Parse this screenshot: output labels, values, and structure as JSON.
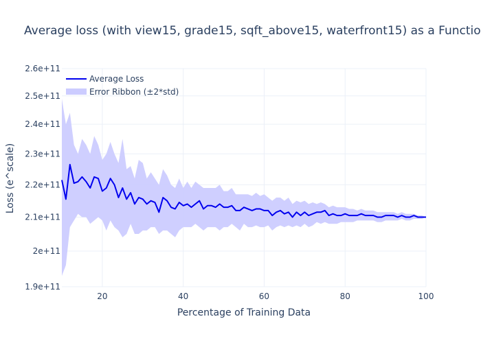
{
  "chart_data": {
    "type": "line",
    "title": "Average loss (with view15, grade15, sqft_above15, waterfront15) as a Function of Training Size",
    "xlabel": "Percentage of Training Data",
    "ylabel": "Loss (e^scale)",
    "xlim": [
      10,
      100
    ],
    "ylim": [
      190000000000.0,
      260000000000.0
    ],
    "y_scale": "log",
    "x_ticks": [
      20,
      40,
      60,
      80,
      100
    ],
    "x_tick_labels": [
      "20",
      "40",
      "60",
      "80",
      "100"
    ],
    "y_ticks": [
      190000000000.0,
      200000000000.0,
      210000000000.0,
      220000000000.0,
      230000000000.0,
      240000000000.0,
      250000000000.0,
      260000000000.0
    ],
    "y_tick_labels": [
      "1.9e+11",
      "2e+11",
      "2.1e+11",
      "2.2e+11",
      "2.3e+11",
      "2.4e+11",
      "2.5e+11",
      "2.6e+11"
    ],
    "grid": true,
    "legend_position": "top-left",
    "x": [
      10,
      11,
      12,
      13,
      14,
      15,
      16,
      17,
      18,
      19,
      20,
      21,
      22,
      23,
      24,
      25,
      26,
      27,
      28,
      29,
      30,
      31,
      32,
      33,
      34,
      35,
      36,
      37,
      38,
      39,
      40,
      41,
      42,
      43,
      44,
      45,
      46,
      47,
      48,
      49,
      50,
      51,
      52,
      53,
      54,
      55,
      56,
      57,
      58,
      59,
      60,
      61,
      62,
      63,
      64,
      65,
      66,
      67,
      68,
      69,
      70,
      71,
      72,
      73,
      74,
      75,
      76,
      77,
      78,
      79,
      80,
      81,
      82,
      83,
      84,
      85,
      86,
      87,
      88,
      89,
      90,
      91,
      92,
      93,
      94,
      95,
      96,
      97,
      98,
      99,
      100
    ],
    "series": [
      {
        "name": "Average Loss",
        "color": "#0000ee",
        "values": [
          221500000000.0,
          215500000000.0,
          226500000000.0,
          220500000000.0,
          221000000000.0,
          222500000000.0,
          221000000000.0,
          219000000000.0,
          222500000000.0,
          222000000000.0,
          218000000000.0,
          219000000000.0,
          222000000000.0,
          220000000000.0,
          216000000000.0,
          219000000000.0,
          215500000000.0,
          217500000000.0,
          214000000000.0,
          216000000000.0,
          215500000000.0,
          214000000000.0,
          215000000000.0,
          214500000000.0,
          211500000000.0,
          216000000000.0,
          215000000000.0,
          213000000000.0,
          212500000000.0,
          214500000000.0,
          213500000000.0,
          214000000000.0,
          213000000000.0,
          214000000000.0,
          215000000000.0,
          212500000000.0,
          213500000000.0,
          213500000000.0,
          213000000000.0,
          214000000000.0,
          213000000000.0,
          213000000000.0,
          213500000000.0,
          212000000000.0,
          212000000000.0,
          213000000000.0,
          212500000000.0,
          212000000000.0,
          212500000000.0,
          212500000000.0,
          212000000000.0,
          212000000000.0,
          210500000000.0,
          211500000000.0,
          212000000000.0,
          211000000000.0,
          211500000000.0,
          210000000000.0,
          211500000000.0,
          210500000000.0,
          211500000000.0,
          210500000000.0,
          211000000000.0,
          211500000000.0,
          211500000000.0,
          212000000000.0,
          210500000000.0,
          211000000000.0,
          210500000000.0,
          210500000000.0,
          211000000000.0,
          210500000000.0,
          210500000000.0,
          210500000000.0,
          211000000000.0,
          210500000000.0,
          210500000000.0,
          210500000000.0,
          210000000000.0,
          210000000000.0,
          210500000000.0,
          210500000000.0,
          210500000000.0,
          210000000000.0,
          210500000000.0,
          210000000000.0,
          210000000000.0,
          210500000000.0,
          210000000000.0,
          210000000000.0,
          210000000000.0
        ]
      },
      {
        "name": "Error Ribbon (±2*std)",
        "color": "#ccccff",
        "upper": [
          249000000000.0,
          240000000000.0,
          244000000000.0,
          233000000000.0,
          230000000000.0,
          235000000000.0,
          233000000000.0,
          230000000000.0,
          236000000000.0,
          233000000000.0,
          228000000000.0,
          230000000000.0,
          234000000000.0,
          230000000000.0,
          227000000000.0,
          235000000000.0,
          225000000000.0,
          226000000000.0,
          222000000000.0,
          228000000000.0,
          227000000000.0,
          222000000000.0,
          224000000000.0,
          222000000000.0,
          220000000000.0,
          225000000000.0,
          223000000000.0,
          220000000000.0,
          219000000000.0,
          222000000000.0,
          219000000000.0,
          221000000000.0,
          219000000000.0,
          221000000000.0,
          220000000000.0,
          219000000000.0,
          219000000000.0,
          219000000000.0,
          219000000000.0,
          220000000000.0,
          218000000000.0,
          218000000000.0,
          219000000000.0,
          217000000000.0,
          217000000000.0,
          217000000000.0,
          217000000000.0,
          216500000000.0,
          217500000000.0,
          216500000000.0,
          217000000000.0,
          216000000000.0,
          215000000000.0,
          216000000000.0,
          216000000000.0,
          215000000000.0,
          216000000000.0,
          214000000000.0,
          215000000000.0,
          214500000000.0,
          215000000000.0,
          214000000000.0,
          214500000000.0,
          214000000000.0,
          214500000000.0,
          214000000000.0,
          213000000000.0,
          213500000000.0,
          213000000000.0,
          213000000000.0,
          213000000000.0,
          212500000000.0,
          212500000000.0,
          212000000000.0,
          212500000000.0,
          212000000000.0,
          212000000000.0,
          212000000000.0,
          211500000000.0,
          211500000000.0,
          211500000000.0,
          211500000000.0,
          211500000000.0,
          211000000000.0,
          211500000000.0,
          211000000000.0,
          211000000000.0,
          211000000000.0,
          210500000000.0,
          210500000000.0,
          210000000000.0
        ],
        "lower": [
          193000000000.0,
          196000000000.0,
          207000000000.0,
          209000000000.0,
          211000000000.0,
          210000000000.0,
          210000000000.0,
          208000000000.0,
          209000000000.0,
          210000000000.0,
          209000000000.0,
          206000000000.0,
          209000000000.0,
          207000000000.0,
          206000000000.0,
          204000000000.0,
          205000000000.0,
          208000000000.0,
          205000000000.0,
          205000000000.0,
          206000000000.0,
          206000000000.0,
          207000000000.0,
          207000000000.0,
          205000000000.0,
          206000000000.0,
          206000000000.0,
          205000000000.0,
          204000000000.0,
          206000000000.0,
          207000000000.0,
          207000000000.0,
          207000000000.0,
          208000000000.0,
          207000000000.0,
          206000000000.0,
          207000000000.0,
          207000000000.0,
          207000000000.0,
          206000000000.0,
          207000000000.0,
          207000000000.0,
          208000000000.0,
          207000000000.0,
          206000000000.0,
          208000000000.0,
          207000000000.0,
          207000000000.0,
          207500000000.0,
          207000000000.0,
          207000000000.0,
          207500000000.0,
          206000000000.0,
          207000000000.0,
          207500000000.0,
          207000000000.0,
          207500000000.0,
          207000000000.0,
          207500000000.0,
          207000000000.0,
          208000000000.0,
          207000000000.0,
          207500000000.0,
          208500000000.0,
          208000000000.0,
          208500000000.0,
          208000000000.0,
          208000000000.0,
          208000000000.0,
          208500000000.0,
          208500000000.0,
          208500000000.0,
          208500000000.0,
          209000000000.0,
          209000000000.0,
          209000000000.0,
          209000000000.0,
          209000000000.0,
          208500000000.0,
          208500000000.0,
          209000000000.0,
          209000000000.0,
          209000000000.0,
          209000000000.0,
          209500000000.0,
          209000000000.0,
          209000000000.0,
          209500000000.0,
          209500000000.0,
          209500000000.0,
          210000000000.0
        ]
      }
    ]
  }
}
